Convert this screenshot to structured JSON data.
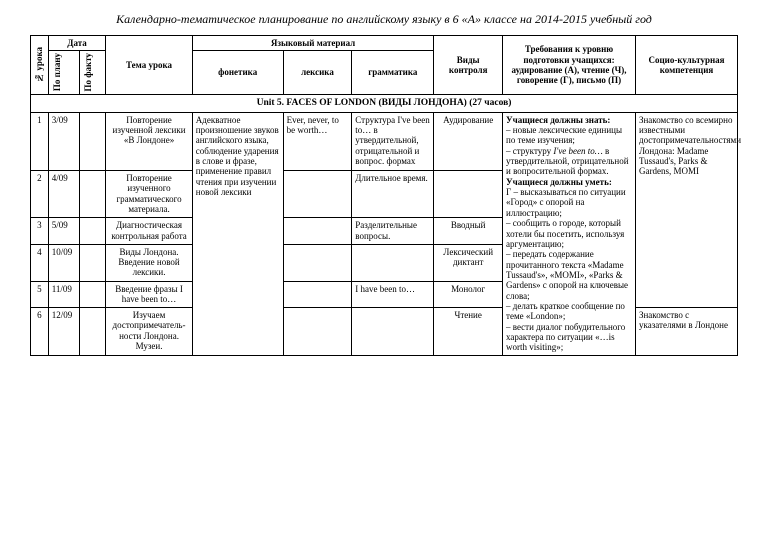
{
  "doc_title": "Календарно-тематическое планирование по английскому языку в 6 «А» классе на 2014-2015 учебный год",
  "headers": {
    "num": "№ урока",
    "date": "Дата",
    "date_plan": "По плану",
    "date_fact": "По факту",
    "tema": "Тема урока",
    "lang": "Языковый материал",
    "fon": "фонетика",
    "lex": "лексика",
    "gram": "грамматика",
    "vid": "Виды контроля",
    "treb": "Требования к уровню подготовки учащихся: аудирование (А), чтение (Ч), говорение (Г), письмо (П)",
    "soc": "Социо-культурная компетенция"
  },
  "section": "Unit 5. FACES OF LONDON (ВИДЫ ЛОНДОНА) (27 часов)",
  "rows": [
    {
      "n": "1",
      "date": "3/09",
      "tema": "Повторение изученной лексики «В Лондоне»",
      "fon": "Адекватное произношение звуков английского языка, соблюдение ударения в слове и фразе, применение правил чтения при изучении новой лексики",
      "lex": "Ever, never, to be worth…",
      "gram": "Структура I've been to… в утвердительной, отрицательной и вопрос. формах",
      "vid": "Аудирование"
    },
    {
      "n": "2",
      "date": "4/09",
      "tema": "Повторение изученного грамматического материала.",
      "gram": "Длительное время."
    },
    {
      "n": "3",
      "date": "5/09",
      "tema": "Диагностическая контрольная работа",
      "gram": "Разделительные вопросы.",
      "vid": "Вводный"
    },
    {
      "n": "4",
      "date": "10/09",
      "tema": "Виды Лондона. Введение новой лексики.",
      "vid": "Лексический диктант"
    },
    {
      "n": "5",
      "date": "11/09",
      "tema": "Введение фразы  I have been to…",
      "gram": "I have been to…",
      "vid": "Монолог"
    },
    {
      "n": "6",
      "date": "12/09",
      "tema": "Изучаем достопримечатель-ности Лондона. Музеи.",
      "vid": "Чтение"
    }
  ],
  "treb_block": "Учащиеся должны знать:\n– новые лексические единицы по теме изучения;\n– структуру I've been to… в утвердительной, отрицательной и вопросительной формах.\nУчащиеся должны уметь:\nГ – высказываться по ситуации «Город» с опорой на иллюстрацию;\n– сообщить о городе, который хотели бы посетить, используя аргументацию;\n– передать содержание прочитанного текста «Madame Tussaud's», «MOMI», «Parks & Gardens» с опорой на ключевые слова;\n– делать краткое сообщение по теме «London»;\n– вести диалог побудительного характера по ситуации «…is worth visiting»;",
  "soc_top": "Знакомство со всемирно известными достопримечательностями Лондона: Madame Tussaud's, Parks & Gardens, MOMI",
  "soc_bottom": "Знакомство с указателями в Лондоне"
}
